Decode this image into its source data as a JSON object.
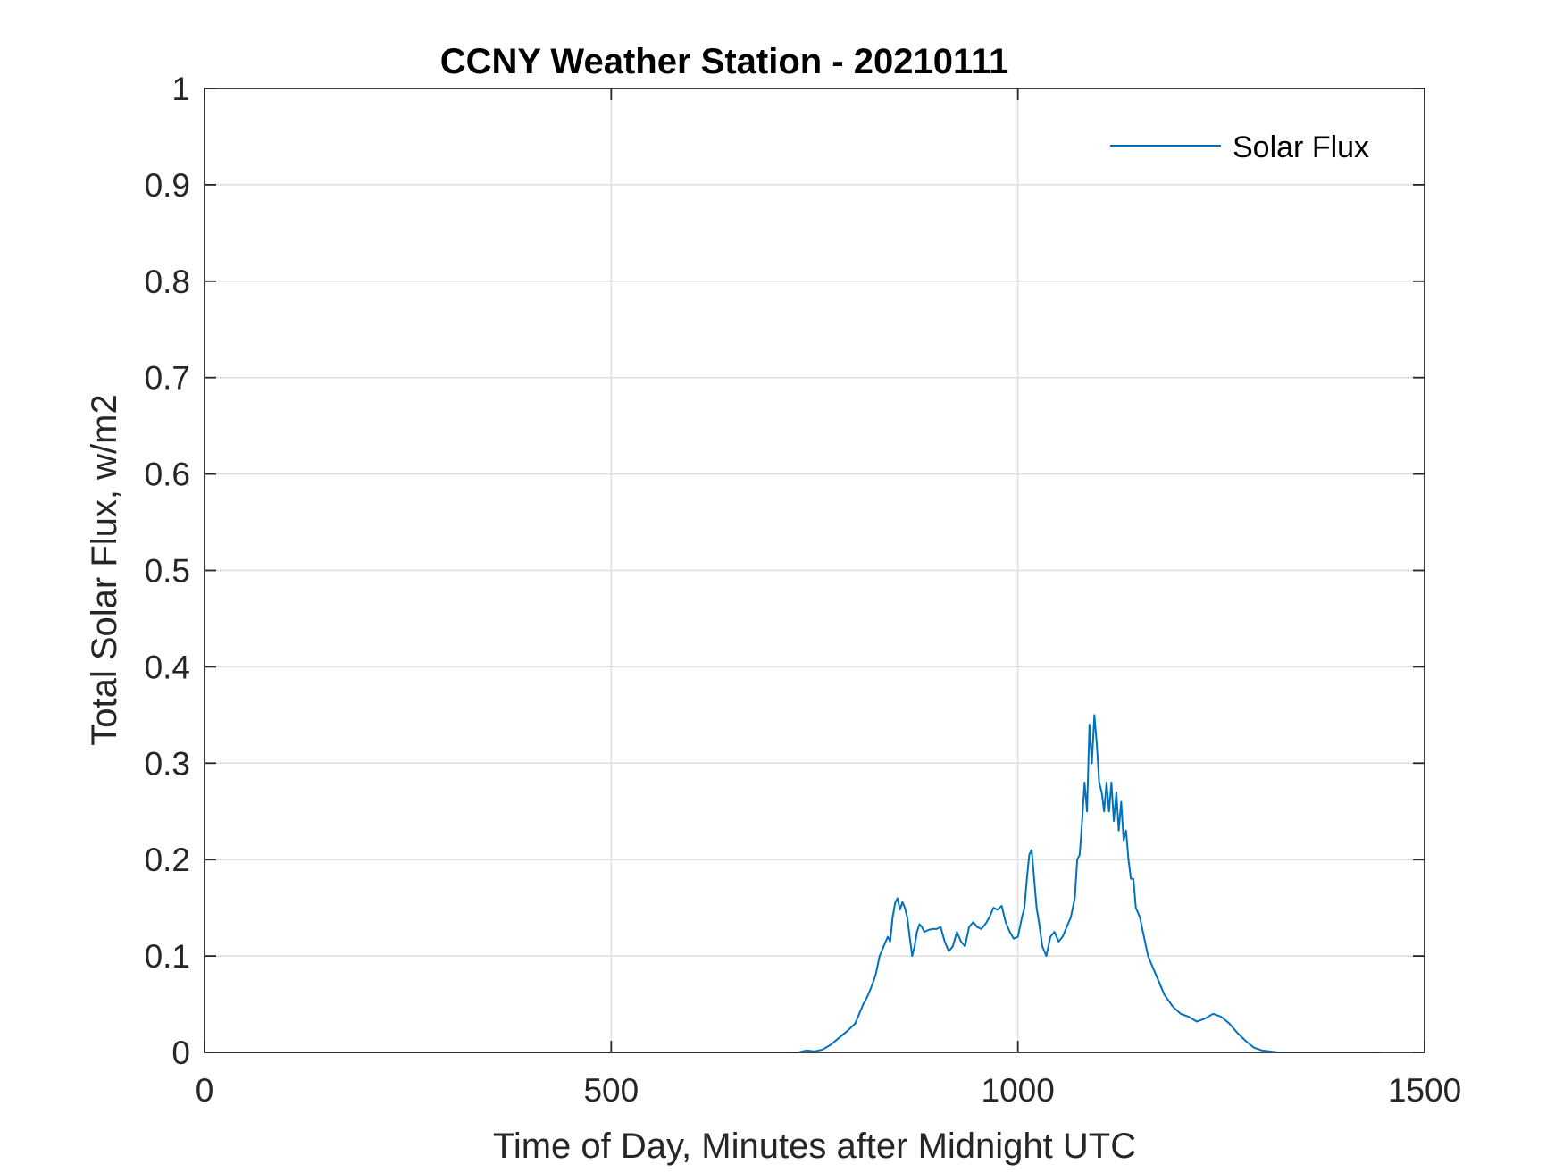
{
  "chart_data": {
    "type": "line",
    "title": "CCNY Weather Station - 20210111",
    "xlabel": "Time of Day, Minutes after Midnight UTC",
    "ylabel": "Total Solar Flux, w/m2",
    "xlim": [
      0,
      1500
    ],
    "ylim": [
      0,
      1
    ],
    "xticks": [
      0,
      500,
      1000,
      1500
    ],
    "xtick_labels": [
      "0",
      "500",
      "1000",
      "1500"
    ],
    "yticks": [
      0,
      0.1,
      0.2,
      0.3,
      0.4,
      0.5,
      0.6,
      0.7,
      0.8,
      0.9,
      1
    ],
    "ytick_labels": [
      "0",
      "0.1",
      "0.2",
      "0.3",
      "0.4",
      "0.5",
      "0.6",
      "0.7",
      "0.8",
      "0.9",
      "1"
    ],
    "grid": true,
    "legend_position": "top-right",
    "series": [
      {
        "name": "Solar Flux",
        "color": "#0072BD",
        "x": [
          0,
          100,
          200,
          300,
          400,
          500,
          600,
          700,
          730,
          740,
          750,
          760,
          770,
          780,
          790,
          800,
          810,
          815,
          820,
          825,
          830,
          835,
          840,
          843,
          846,
          849,
          852,
          855,
          858,
          861,
          864,
          867,
          870,
          873,
          876,
          879,
          882,
          885,
          890,
          895,
          900,
          905,
          910,
          915,
          920,
          925,
          930,
          935,
          940,
          945,
          950,
          955,
          960,
          965,
          970,
          975,
          980,
          985,
          990,
          995,
          1000,
          1005,
          1008,
          1011,
          1014,
          1017,
          1020,
          1023,
          1026,
          1030,
          1035,
          1040,
          1045,
          1050,
          1055,
          1060,
          1065,
          1070,
          1073,
          1076,
          1079,
          1082,
          1085,
          1088,
          1091,
          1094,
          1097,
          1100,
          1103,
          1106,
          1109,
          1112,
          1115,
          1118,
          1121,
          1124,
          1127,
          1130,
          1133,
          1136,
          1139,
          1142,
          1145,
          1150,
          1155,
          1160,
          1165,
          1170,
          1180,
          1190,
          1200,
          1210,
          1220,
          1230,
          1240,
          1250,
          1260,
          1270,
          1280,
          1290,
          1300,
          1310,
          1320,
          1330,
          1340,
          1400,
          1445
        ],
        "values": [
          0,
          0,
          0,
          0,
          0,
          0,
          0,
          0,
          0,
          0.002,
          0.001,
          0.003,
          0.008,
          0.015,
          0.022,
          0.03,
          0.05,
          0.058,
          0.068,
          0.08,
          0.1,
          0.11,
          0.12,
          0.115,
          0.14,
          0.155,
          0.16,
          0.148,
          0.156,
          0.15,
          0.14,
          0.12,
          0.1,
          0.11,
          0.125,
          0.133,
          0.13,
          0.125,
          0.127,
          0.128,
          0.128,
          0.13,
          0.115,
          0.105,
          0.11,
          0.125,
          0.115,
          0.11,
          0.13,
          0.135,
          0.13,
          0.128,
          0.133,
          0.14,
          0.15,
          0.148,
          0.152,
          0.135,
          0.125,
          0.118,
          0.12,
          0.14,
          0.15,
          0.18,
          0.205,
          0.21,
          0.18,
          0.15,
          0.135,
          0.11,
          0.1,
          0.12,
          0.125,
          0.115,
          0.12,
          0.13,
          0.14,
          0.16,
          0.2,
          0.205,
          0.24,
          0.28,
          0.25,
          0.34,
          0.3,
          0.35,
          0.32,
          0.28,
          0.27,
          0.25,
          0.28,
          0.25,
          0.28,
          0.24,
          0.27,
          0.23,
          0.26,
          0.22,
          0.23,
          0.2,
          0.18,
          0.18,
          0.15,
          0.14,
          0.12,
          0.1,
          0.09,
          0.08,
          0.06,
          0.048,
          0.04,
          0.037,
          0.032,
          0.035,
          0.04,
          0.037,
          0.03,
          0.02,
          0.012,
          0.005,
          0.002,
          0.001,
          0,
          0,
          0,
          0,
          0
        ]
      }
    ]
  }
}
